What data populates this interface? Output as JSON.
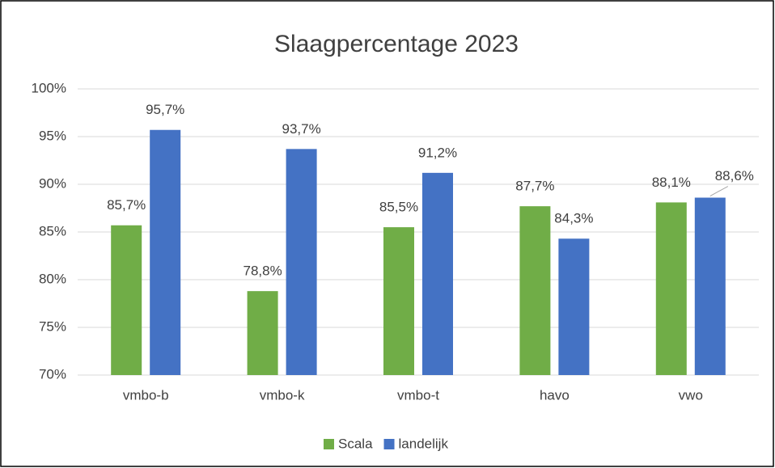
{
  "chart_data": {
    "type": "bar",
    "title": "Slaagpercentage 2023",
    "categories": [
      "vmbo-b",
      "vmbo-k",
      "vmbo-t",
      "havo",
      "vwo"
    ],
    "series": [
      {
        "name": "Scala",
        "color": "#70ad47",
        "values": [
          85.7,
          78.8,
          85.5,
          87.7,
          88.1
        ],
        "value_labels": [
          "85,7%",
          "78,8%",
          "85,5%",
          "87,7%",
          "88,1%"
        ]
      },
      {
        "name": "landelijk",
        "color": "#4472c4",
        "values": [
          95.7,
          93.7,
          91.2,
          84.3,
          88.6
        ],
        "value_labels": [
          "95,7%",
          "93,7%",
          "91,2%",
          "84,3%",
          "88,6%"
        ]
      }
    ],
    "ylim": [
      70,
      100
    ],
    "yticks": [
      {
        "value": 70,
        "label": "70%"
      },
      {
        "value": 75,
        "label": "75%"
      },
      {
        "value": 80,
        "label": "80%"
      },
      {
        "value": 85,
        "label": "85%"
      },
      {
        "value": 90,
        "label": "90%"
      },
      {
        "value": 95,
        "label": "95%"
      },
      {
        "value": 100,
        "label": "100%"
      }
    ],
    "grid": true,
    "legend": "bottom"
  }
}
